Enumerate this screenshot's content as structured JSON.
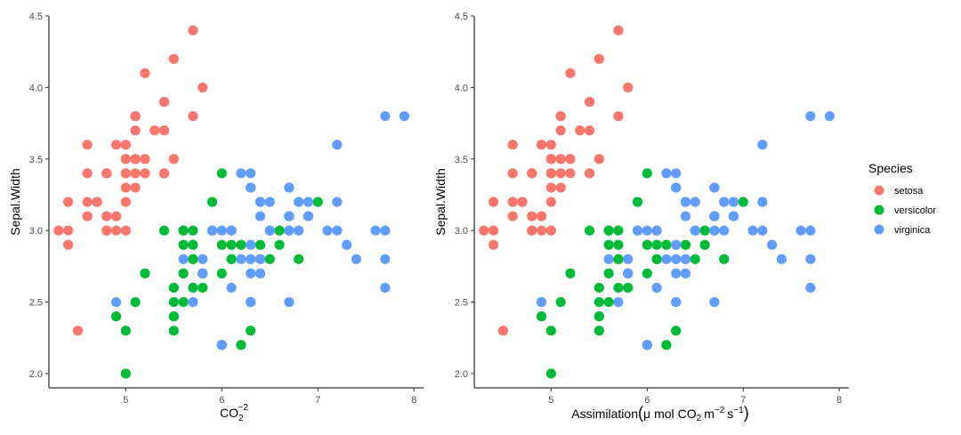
{
  "colors": {
    "setosa": "#F8766D",
    "versicolor": "#00BA38",
    "virginica": "#619CFF"
  },
  "legend": {
    "title": "Species",
    "items": [
      {
        "label": "setosa",
        "color": "#F8766D"
      },
      {
        "label": "versicolor",
        "color": "#00BA38"
      },
      {
        "label": "virginica",
        "color": "#619CFF"
      }
    ]
  },
  "panels": [
    {
      "ylabel": "Sepal.Width",
      "xlabel_parts": {
        "base": "CO",
        "sub": "2",
        "sup": "−2"
      }
    },
    {
      "ylabel": "Sepal.Width",
      "xlabel_parts": {
        "pre": "Assimilation",
        "mu": "μ",
        "mol": "mol",
        "co": "CO",
        "sub": "2",
        "m": "m",
        "msup": "−2",
        "s": "s",
        "ssup": "−1"
      }
    }
  ],
  "chart_data": {
    "type": "scatter",
    "xlim": [
      4.2,
      8.1
    ],
    "ylim": [
      1.9,
      4.5
    ],
    "xticks": [
      5,
      6,
      7,
      8
    ],
    "yticks": [
      2.0,
      2.5,
      3.0,
      3.5,
      4.0,
      4.5
    ],
    "xtick_labels": [
      "5",
      "6",
      "7",
      "8"
    ],
    "ytick_labels": [
      "2.0",
      "2.5",
      "3.0",
      "3.5",
      "4.0",
      "4.5"
    ],
    "grid": false,
    "legend_position": "right",
    "series": [
      {
        "name": "setosa",
        "points": [
          [
            5.1,
            3.5
          ],
          [
            4.9,
            3.0
          ],
          [
            4.7,
            3.2
          ],
          [
            4.6,
            3.1
          ],
          [
            5.0,
            3.6
          ],
          [
            5.4,
            3.9
          ],
          [
            4.6,
            3.4
          ],
          [
            5.0,
            3.4
          ],
          [
            4.4,
            2.9
          ],
          [
            4.9,
            3.1
          ],
          [
            5.4,
            3.7
          ],
          [
            4.8,
            3.4
          ],
          [
            4.8,
            3.0
          ],
          [
            4.3,
            3.0
          ],
          [
            5.8,
            4.0
          ],
          [
            5.7,
            4.4
          ],
          [
            5.4,
            3.9
          ],
          [
            5.1,
            3.5
          ],
          [
            5.7,
            3.8
          ],
          [
            5.1,
            3.8
          ],
          [
            5.4,
            3.4
          ],
          [
            5.1,
            3.7
          ],
          [
            4.6,
            3.6
          ],
          [
            5.1,
            3.3
          ],
          [
            4.8,
            3.4
          ],
          [
            5.0,
            3.0
          ],
          [
            5.0,
            3.4
          ],
          [
            5.2,
            3.5
          ],
          [
            5.2,
            3.4
          ],
          [
            4.7,
            3.2
          ],
          [
            4.8,
            3.1
          ],
          [
            5.4,
            3.4
          ],
          [
            5.2,
            4.1
          ],
          [
            5.5,
            4.2
          ],
          [
            4.9,
            3.1
          ],
          [
            5.0,
            3.2
          ],
          [
            5.5,
            3.5
          ],
          [
            4.9,
            3.6
          ],
          [
            4.4,
            3.0
          ],
          [
            5.1,
            3.4
          ],
          [
            5.0,
            3.5
          ],
          [
            4.5,
            2.3
          ],
          [
            4.4,
            3.2
          ],
          [
            5.0,
            3.5
          ],
          [
            5.1,
            3.8
          ],
          [
            4.8,
            3.0
          ],
          [
            5.1,
            3.8
          ],
          [
            4.6,
            3.2
          ],
          [
            5.3,
            3.7
          ],
          [
            5.0,
            3.3
          ]
        ]
      },
      {
        "name": "versicolor",
        "points": [
          [
            7.0,
            3.2
          ],
          [
            6.4,
            3.2
          ],
          [
            6.9,
            3.1
          ],
          [
            5.5,
            2.3
          ],
          [
            6.5,
            2.8
          ],
          [
            5.7,
            2.8
          ],
          [
            6.3,
            3.3
          ],
          [
            4.9,
            2.4
          ],
          [
            6.6,
            2.9
          ],
          [
            5.2,
            2.7
          ],
          [
            5.0,
            2.0
          ],
          [
            5.9,
            3.0
          ],
          [
            6.0,
            2.2
          ],
          [
            6.1,
            2.9
          ],
          [
            5.6,
            2.9
          ],
          [
            6.7,
            3.1
          ],
          [
            5.6,
            3.0
          ],
          [
            5.8,
            2.7
          ],
          [
            6.2,
            2.2
          ],
          [
            5.6,
            2.5
          ],
          [
            5.9,
            3.2
          ],
          [
            6.1,
            2.8
          ],
          [
            6.3,
            2.5
          ],
          [
            6.1,
            2.8
          ],
          [
            6.4,
            2.9
          ],
          [
            6.6,
            3.0
          ],
          [
            6.8,
            2.8
          ],
          [
            6.7,
            3.0
          ],
          [
            6.0,
            2.9
          ],
          [
            5.7,
            2.6
          ],
          [
            5.5,
            2.4
          ],
          [
            5.5,
            2.4
          ],
          [
            5.8,
            2.7
          ],
          [
            6.0,
            2.7
          ],
          [
            5.4,
            3.0
          ],
          [
            6.0,
            3.4
          ],
          [
            6.7,
            3.1
          ],
          [
            6.3,
            2.3
          ],
          [
            5.6,
            3.0
          ],
          [
            5.5,
            2.5
          ],
          [
            5.5,
            2.6
          ],
          [
            6.1,
            3.0
          ],
          [
            5.8,
            2.6
          ],
          [
            5.0,
            2.3
          ],
          [
            5.6,
            2.7
          ],
          [
            5.7,
            3.0
          ],
          [
            5.7,
            2.9
          ],
          [
            6.2,
            2.9
          ],
          [
            5.1,
            2.5
          ],
          [
            5.7,
            2.8
          ]
        ]
      },
      {
        "name": "virginica",
        "points": [
          [
            6.3,
            3.3
          ],
          [
            5.8,
            2.7
          ],
          [
            7.1,
            3.0
          ],
          [
            6.3,
            2.9
          ],
          [
            6.5,
            3.0
          ],
          [
            7.6,
            3.0
          ],
          [
            4.9,
            2.5
          ],
          [
            7.3,
            2.9
          ],
          [
            6.7,
            2.5
          ],
          [
            7.2,
            3.6
          ],
          [
            6.5,
            3.2
          ],
          [
            6.4,
            2.7
          ],
          [
            6.8,
            3.0
          ],
          [
            5.7,
            2.5
          ],
          [
            5.8,
            2.8
          ],
          [
            6.4,
            3.2
          ],
          [
            6.5,
            3.0
          ],
          [
            7.7,
            3.8
          ],
          [
            7.7,
            2.6
          ],
          [
            6.0,
            2.2
          ],
          [
            6.9,
            3.2
          ],
          [
            5.6,
            2.8
          ],
          [
            7.7,
            2.8
          ],
          [
            6.3,
            2.7
          ],
          [
            6.7,
            3.3
          ],
          [
            7.2,
            3.2
          ],
          [
            6.2,
            2.8
          ],
          [
            6.1,
            3.0
          ],
          [
            6.4,
            2.8
          ],
          [
            7.2,
            3.0
          ],
          [
            7.4,
            2.8
          ],
          [
            7.9,
            3.8
          ],
          [
            6.4,
            2.8
          ],
          [
            6.3,
            2.8
          ],
          [
            6.1,
            2.6
          ],
          [
            7.7,
            3.0
          ],
          [
            6.3,
            3.4
          ],
          [
            6.4,
            3.1
          ],
          [
            6.0,
            3.0
          ],
          [
            6.9,
            3.1
          ],
          [
            6.7,
            3.1
          ],
          [
            6.9,
            3.1
          ],
          [
            5.8,
            2.7
          ],
          [
            6.8,
            3.2
          ],
          [
            6.7,
            3.3
          ],
          [
            6.7,
            3.0
          ],
          [
            6.3,
            2.5
          ],
          [
            6.5,
            3.0
          ],
          [
            6.2,
            3.4
          ],
          [
            5.9,
            3.0
          ]
        ]
      }
    ]
  }
}
